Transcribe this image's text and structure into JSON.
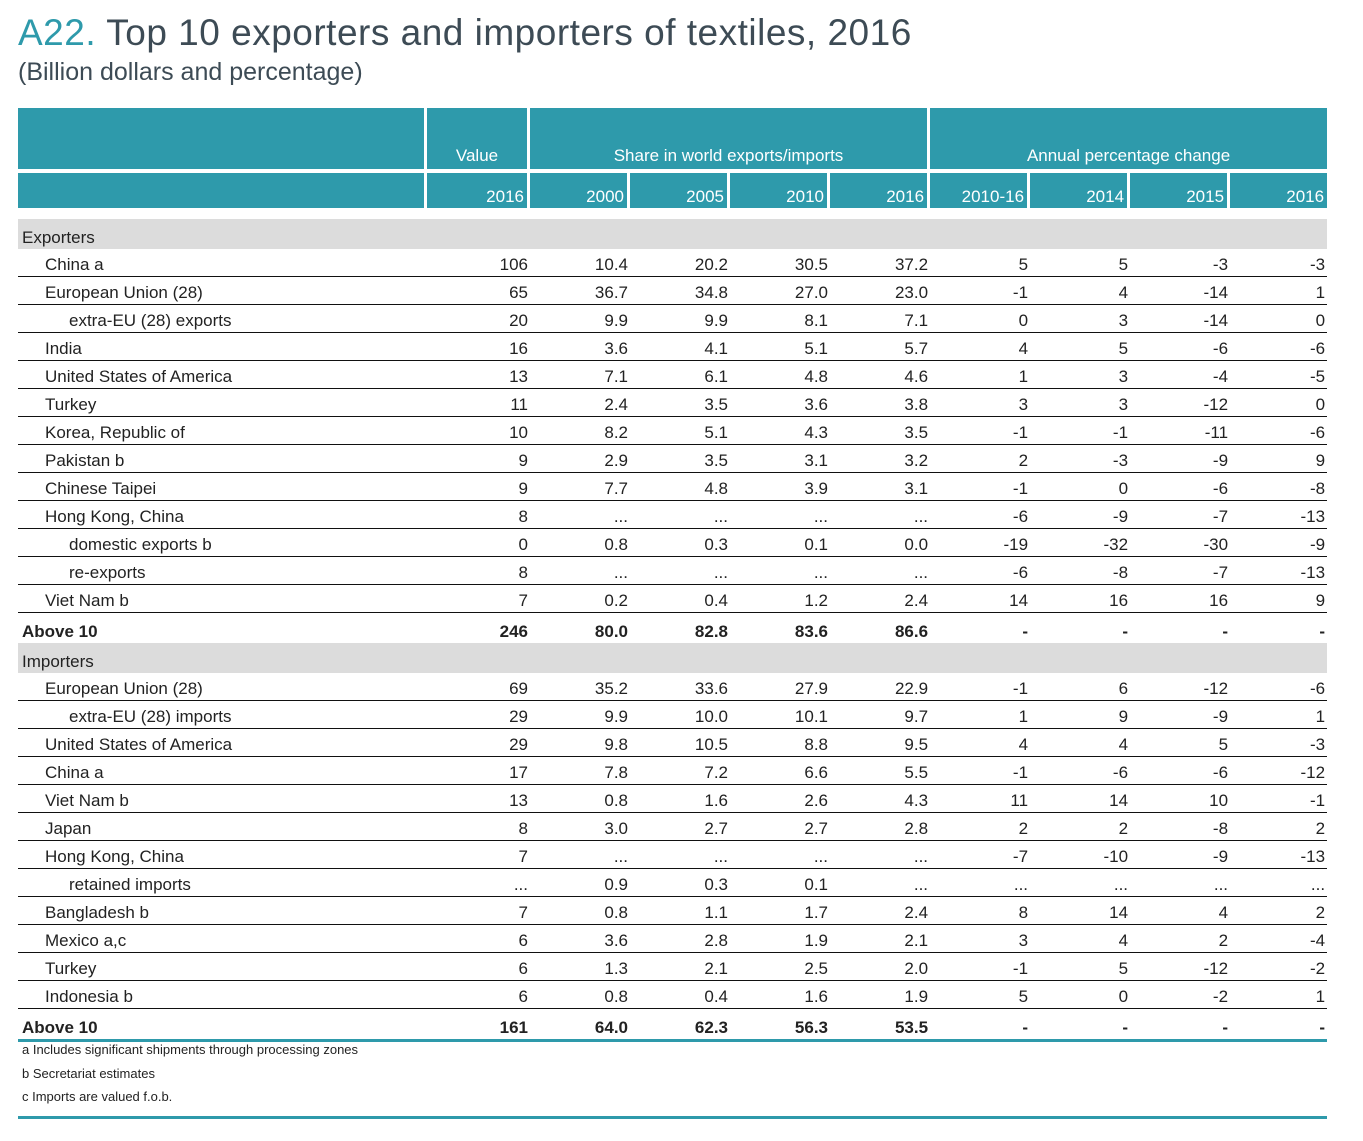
{
  "title": {
    "code": "A22.",
    "text": "Top 10 exporters and importers of textiles, 2016",
    "subtitle": "(Billion dollars and percentage)"
  },
  "colors": {
    "accent": "#2e9aab",
    "section_bg": "#dcdcdc",
    "title_text": "#3d4b55"
  },
  "header": {
    "groups": [
      "Value",
      "Share in world exports/imports",
      "Annual percentage change"
    ],
    "years": [
      "2016",
      "2000",
      "2005",
      "2010",
      "2016",
      "2010-16",
      "2014",
      "2015",
      "2016"
    ]
  },
  "exporters": {
    "label": "Exporters",
    "rows": [
      {
        "name": "China  a",
        "indent": false,
        "values": [
          "106",
          "10.4",
          "20.2",
          "30.5",
          "37.2",
          "5",
          "5",
          "-3",
          "-3"
        ]
      },
      {
        "name": "European Union (28)",
        "indent": false,
        "values": [
          "65",
          "36.7",
          "34.8",
          "27.0",
          "23.0",
          "-1",
          "4",
          "-14",
          "1"
        ]
      },
      {
        "name": "extra-EU (28) exports",
        "indent": true,
        "values": [
          "20",
          "9.9",
          "9.9",
          "8.1",
          "7.1",
          "0",
          "3",
          "-14",
          "0"
        ]
      },
      {
        "name": "India",
        "indent": false,
        "values": [
          "16",
          "3.6",
          "4.1",
          "5.1",
          "5.7",
          "4",
          "5",
          "-6",
          "-6"
        ]
      },
      {
        "name": "United States of America",
        "indent": false,
        "values": [
          "13",
          "7.1",
          "6.1",
          "4.8",
          "4.6",
          "1",
          "3",
          "-4",
          "-5"
        ]
      },
      {
        "name": "Turkey",
        "indent": false,
        "values": [
          "11",
          "2.4",
          "3.5",
          "3.6",
          "3.8",
          "3",
          "3",
          "-12",
          "0"
        ]
      },
      {
        "name": "Korea, Republic of",
        "indent": false,
        "values": [
          "10",
          "8.2",
          "5.1",
          "4.3",
          "3.5",
          "-1",
          "-1",
          "-11",
          "-6"
        ]
      },
      {
        "name": "Pakistan  b",
        "indent": false,
        "values": [
          "9",
          "2.9",
          "3.5",
          "3.1",
          "3.2",
          "2",
          "-3",
          "-9",
          "9"
        ]
      },
      {
        "name": "Chinese Taipei",
        "indent": false,
        "values": [
          "9",
          "7.7",
          "4.8",
          "3.9",
          "3.1",
          "-1",
          "0",
          "-6",
          "-8"
        ]
      },
      {
        "name": "Hong Kong, China",
        "indent": false,
        "values": [
          "8",
          "...",
          "...",
          "...",
          "...",
          "-6",
          "-9",
          "-7",
          "-13"
        ]
      },
      {
        "name": "domestic exports  b",
        "indent": true,
        "values": [
          "0",
          "0.8",
          "0.3",
          "0.1",
          "0.0",
          "-19",
          "-32",
          "-30",
          "-9"
        ]
      },
      {
        "name": "re-exports",
        "indent": true,
        "values": [
          "8",
          "...",
          "...",
          "...",
          "...",
          "-6",
          "-8",
          "-7",
          "-13"
        ]
      },
      {
        "name": "Viet Nam  b",
        "indent": false,
        "values": [
          "7",
          "0.2",
          "0.4",
          "1.2",
          "2.4",
          "14",
          "16",
          "16",
          "9"
        ]
      }
    ],
    "total": {
      "name": "Above 10",
      "values": [
        "246",
        "80.0",
        "82.8",
        "83.6",
        "86.6",
        "-",
        "-",
        "-",
        "-"
      ]
    }
  },
  "importers": {
    "label": "Importers",
    "rows": [
      {
        "name": "European Union (28)",
        "indent": false,
        "values": [
          "69",
          "35.2",
          "33.6",
          "27.9",
          "22.9",
          "-1",
          "6",
          "-12",
          "-6"
        ]
      },
      {
        "name": "extra-EU (28) imports",
        "indent": true,
        "values": [
          "29",
          "9.9",
          "10.0",
          "10.1",
          "9.7",
          "1",
          "9",
          "-9",
          "1"
        ]
      },
      {
        "name": "United States of America",
        "indent": false,
        "values": [
          "29",
          "9.8",
          "10.5",
          "8.8",
          "9.5",
          "4",
          "4",
          "5",
          "-3"
        ]
      },
      {
        "name": "China  a",
        "indent": false,
        "values": [
          "17",
          "7.8",
          "7.2",
          "6.6",
          "5.5",
          "-1",
          "-6",
          "-6",
          "-12"
        ]
      },
      {
        "name": "Viet Nam  b",
        "indent": false,
        "values": [
          "13",
          "0.8",
          "1.6",
          "2.6",
          "4.3",
          "11",
          "14",
          "10",
          "-1"
        ]
      },
      {
        "name": "Japan",
        "indent": false,
        "values": [
          "8",
          "3.0",
          "2.7",
          "2.7",
          "2.8",
          "2",
          "2",
          "-8",
          "2"
        ]
      },
      {
        "name": "Hong Kong, China",
        "indent": false,
        "values": [
          "7",
          "...",
          "...",
          "...",
          "...",
          "-7",
          "-10",
          "-9",
          "-13"
        ]
      },
      {
        "name": "retained imports",
        "indent": true,
        "values": [
          "...",
          "0.9",
          "0.3",
          "0.1",
          "...",
          "...",
          "...",
          "...",
          "..."
        ]
      },
      {
        "name": "Bangladesh  b",
        "indent": false,
        "values": [
          "7",
          "0.8",
          "1.1",
          "1.7",
          "2.4",
          "8",
          "14",
          "4",
          "2"
        ]
      },
      {
        "name": "Mexico  a,c",
        "indent": false,
        "values": [
          "6",
          "3.6",
          "2.8",
          "1.9",
          "2.1",
          "3",
          "4",
          "2",
          "-4"
        ]
      },
      {
        "name": "Turkey",
        "indent": false,
        "values": [
          "6",
          "1.3",
          "2.1",
          "2.5",
          "2.0",
          "-1",
          "5",
          "-12",
          "-2"
        ]
      },
      {
        "name": "Indonesia  b",
        "indent": false,
        "values": [
          "6",
          "0.8",
          "0.4",
          "1.6",
          "1.9",
          "5",
          "0",
          "-2",
          "1"
        ]
      }
    ],
    "total": {
      "name": "Above 10",
      "values": [
        "161",
        "64.0",
        "62.3",
        "56.3",
        "53.5",
        "-",
        "-",
        "-",
        "-"
      ]
    }
  },
  "footnotes": [
    "a  Includes significant shipments through processing zones",
    "b  Secretariat estimates",
    "c  Imports are valued f.o.b."
  ]
}
